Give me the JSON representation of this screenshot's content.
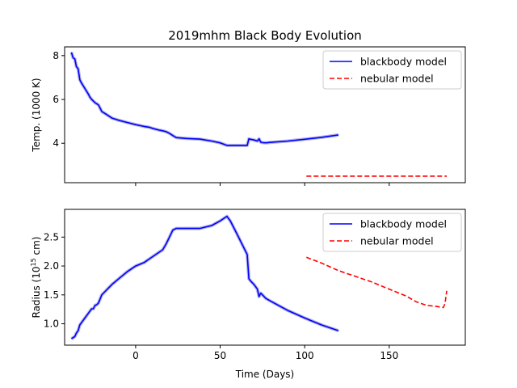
{
  "chart_data": {
    "type": "line",
    "title": "2019mhm Black Body Evolution",
    "xlabel": "Time (Days)",
    "xlim": [
      -42,
      195
    ],
    "xticks": [
      0,
      50,
      100,
      150
    ],
    "colors": {
      "blackbody": "#0000ff",
      "band": "#7777cc",
      "nebular": "#ff0000"
    },
    "panels": [
      {
        "id": "temperature",
        "ylabel": "Temp. (1000 K)",
        "ylim": [
          2.2,
          8.4
        ],
        "yticks": [
          4,
          6,
          8
        ],
        "legend": {
          "position": "upper right",
          "entries": [
            "blackbody model",
            "nebular model"
          ]
        },
        "series": [
          {
            "name": "blackbody model",
            "style": "solid",
            "x": [
              -38,
              -37,
              -36,
              -35,
              -34,
              -33,
              -32,
              -30,
              -28,
              -27,
              -26,
              -24,
              -22,
              -20,
              -18,
              -14,
              -10,
              -5,
              0,
              5,
              8,
              10,
              14,
              16,
              18,
              20,
              22,
              24,
              30,
              38,
              45,
              50,
              54,
              60,
              66,
              67,
              68,
              70,
              72,
              73,
              74,
              75,
              77,
              80,
              90,
              100,
              110,
              120
            ],
            "y": [
              8.15,
              7.9,
              7.85,
              7.5,
              7.4,
              6.9,
              6.75,
              6.5,
              6.25,
              6.1,
              6.0,
              5.85,
              5.75,
              5.45,
              5.35,
              5.15,
              5.05,
              4.95,
              4.85,
              4.77,
              4.73,
              4.68,
              4.6,
              4.57,
              4.53,
              4.45,
              4.35,
              4.26,
              4.22,
              4.19,
              4.1,
              4.02,
              3.9,
              3.9,
              3.9,
              4.2,
              4.18,
              4.15,
              4.1,
              4.2,
              4.05,
              4.03,
              4.02,
              4.04,
              4.1,
              4.18,
              4.27,
              4.38
            ]
          },
          {
            "name": "nebular model",
            "style": "dashed",
            "x": [
              101,
              184
            ],
            "y": [
              2.5,
              2.5
            ]
          }
        ]
      },
      {
        "id": "radius",
        "ylabel_main": "Radius (10",
        "ylabel_sup": "15",
        "ylabel_end": " cm)",
        "ylim": [
          0.63,
          2.98
        ],
        "yticks": [
          1.0,
          1.5,
          2.0,
          2.5
        ],
        "ytick_labels": [
          "1.0",
          "1.5",
          "2.0",
          "2.5"
        ],
        "legend": {
          "position": "upper right",
          "entries": [
            "blackbody model",
            "nebular model"
          ]
        },
        "series": [
          {
            "name": "blackbody model",
            "style": "solid",
            "x": [
              -38,
              -37,
              -36,
              -35,
              -34,
              -33,
              -32,
              -30,
              -28,
              -27,
              -26,
              -25,
              -24,
              -23,
              -22,
              -20,
              -18,
              -16,
              -14,
              -10,
              -5,
              0,
              5,
              8,
              10,
              14,
              16,
              18,
              20,
              22,
              24,
              30,
              38,
              45,
              50,
              54,
              56,
              60,
              66,
              67,
              68,
              70,
              72,
              73,
              74,
              75,
              77,
              80,
              90,
              100,
              110,
              120
            ],
            "y": [
              0.74,
              0.76,
              0.78,
              0.84,
              0.88,
              0.98,
              1.02,
              1.1,
              1.18,
              1.22,
              1.26,
              1.26,
              1.32,
              1.33,
              1.36,
              1.5,
              1.56,
              1.62,
              1.68,
              1.78,
              1.9,
              2.0,
              2.06,
              2.12,
              2.16,
              2.24,
              2.28,
              2.38,
              2.5,
              2.62,
              2.65,
              2.65,
              2.65,
              2.7,
              2.78,
              2.86,
              2.78,
              2.55,
              2.2,
              1.78,
              1.74,
              1.68,
              1.6,
              1.47,
              1.53,
              1.5,
              1.44,
              1.39,
              1.23,
              1.1,
              0.98,
              0.88
            ]
          },
          {
            "name": "nebular model",
            "style": "dashed",
            "x": [
              101,
              110,
              120,
              130,
              140,
              150,
              160,
              166,
              172,
              178,
              182,
              183,
              184
            ],
            "y": [
              2.15,
              2.05,
              1.92,
              1.82,
              1.72,
              1.6,
              1.48,
              1.38,
              1.32,
              1.3,
              1.28,
              1.35,
              1.57
            ]
          }
        ]
      }
    ]
  }
}
